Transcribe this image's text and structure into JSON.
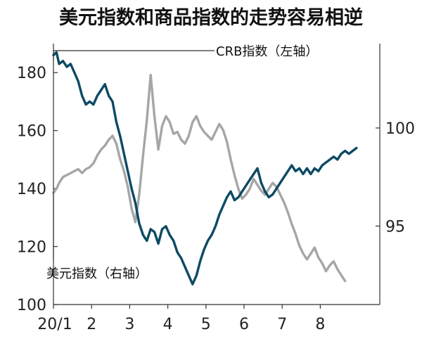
{
  "chart_data": {
    "type": "line",
    "title": "美元指数和商品指数的走势容易相逆",
    "x_tick_labels": [
      "20/1",
      "2",
      "3",
      "4",
      "5",
      "6",
      "7",
      "8"
    ],
    "left_axis": {
      "ylim": [
        100,
        190
      ],
      "ticks": [
        100,
        120,
        140,
        160,
        180
      ]
    },
    "right_axis": {
      "ylim": [
        91,
        104.3
      ],
      "ticks": [
        95,
        100
      ]
    },
    "grid": false,
    "series": [
      {
        "name": "CRB指数（左轴）",
        "axis": "left",
        "color": "#0d4a63",
        "points": [
          [
            0.0,
            186
          ],
          [
            0.08,
            187
          ],
          [
            0.15,
            183
          ],
          [
            0.25,
            184
          ],
          [
            0.35,
            182
          ],
          [
            0.45,
            183
          ],
          [
            0.55,
            180
          ],
          [
            0.65,
            177
          ],
          [
            0.75,
            172
          ],
          [
            0.85,
            169
          ],
          [
            0.95,
            170
          ],
          [
            1.05,
            169
          ],
          [
            1.15,
            172
          ],
          [
            1.25,
            174
          ],
          [
            1.35,
            176
          ],
          [
            1.45,
            172
          ],
          [
            1.55,
            170
          ],
          [
            1.65,
            163
          ],
          [
            1.75,
            158
          ],
          [
            1.85,
            152
          ],
          [
            1.95,
            146
          ],
          [
            2.05,
            140
          ],
          [
            2.15,
            135
          ],
          [
            2.25,
            128
          ],
          [
            2.35,
            124
          ],
          [
            2.45,
            122
          ],
          [
            2.55,
            126
          ],
          [
            2.65,
            125
          ],
          [
            2.75,
            121
          ],
          [
            2.85,
            126
          ],
          [
            2.95,
            127
          ],
          [
            3.05,
            124
          ],
          [
            3.15,
            122
          ],
          [
            3.25,
            118
          ],
          [
            3.35,
            116
          ],
          [
            3.45,
            113
          ],
          [
            3.55,
            110
          ],
          [
            3.65,
            107
          ],
          [
            3.75,
            110
          ],
          [
            3.85,
            115
          ],
          [
            3.95,
            119
          ],
          [
            4.05,
            122
          ],
          [
            4.15,
            124
          ],
          [
            4.25,
            127
          ],
          [
            4.35,
            131
          ],
          [
            4.45,
            134
          ],
          [
            4.55,
            137
          ],
          [
            4.65,
            139
          ],
          [
            4.75,
            136
          ],
          [
            4.85,
            137
          ],
          [
            4.95,
            139
          ],
          [
            5.05,
            141
          ],
          [
            5.15,
            143
          ],
          [
            5.25,
            145
          ],
          [
            5.35,
            147
          ],
          [
            5.45,
            142
          ],
          [
            5.55,
            139
          ],
          [
            5.65,
            137
          ],
          [
            5.75,
            138
          ],
          [
            5.85,
            140
          ],
          [
            5.95,
            142
          ],
          [
            6.05,
            144
          ],
          [
            6.15,
            146
          ],
          [
            6.25,
            148
          ],
          [
            6.35,
            146
          ],
          [
            6.45,
            147
          ],
          [
            6.55,
            145
          ],
          [
            6.65,
            147
          ],
          [
            6.75,
            145
          ],
          [
            6.85,
            147
          ],
          [
            6.95,
            146
          ],
          [
            7.05,
            148
          ],
          [
            7.15,
            149
          ],
          [
            7.25,
            150
          ],
          [
            7.35,
            151
          ],
          [
            7.45,
            150
          ],
          [
            7.55,
            152
          ],
          [
            7.65,
            153
          ],
          [
            7.75,
            152
          ],
          [
            7.85,
            153
          ],
          [
            7.95,
            154
          ]
        ]
      },
      {
        "name": "美元指数（右轴）",
        "axis": "right",
        "color": "#a6a6a6",
        "points": [
          [
            0.0,
            96.7
          ],
          [
            0.08,
            96.9
          ],
          [
            0.15,
            97.2
          ],
          [
            0.25,
            97.5
          ],
          [
            0.35,
            97.6
          ],
          [
            0.45,
            97.7
          ],
          [
            0.55,
            97.8
          ],
          [
            0.65,
            97.9
          ],
          [
            0.75,
            97.7
          ],
          [
            0.85,
            97.9
          ],
          [
            0.95,
            98.0
          ],
          [
            1.05,
            98.2
          ],
          [
            1.15,
            98.6
          ],
          [
            1.25,
            98.9
          ],
          [
            1.35,
            99.1
          ],
          [
            1.45,
            99.4
          ],
          [
            1.55,
            99.6
          ],
          [
            1.65,
            99.2
          ],
          [
            1.75,
            98.4
          ],
          [
            1.85,
            97.8
          ],
          [
            1.95,
            97.0
          ],
          [
            2.05,
            95.9
          ],
          [
            2.15,
            95.2
          ],
          [
            2.25,
            96.6
          ],
          [
            2.35,
            98.6
          ],
          [
            2.45,
            100.4
          ],
          [
            2.55,
            102.7
          ],
          [
            2.65,
            100.6
          ],
          [
            2.75,
            98.9
          ],
          [
            2.85,
            100.1
          ],
          [
            2.95,
            100.6
          ],
          [
            3.05,
            100.3
          ],
          [
            3.15,
            99.7
          ],
          [
            3.25,
            99.8
          ],
          [
            3.35,
            99.4
          ],
          [
            3.45,
            99.2
          ],
          [
            3.55,
            99.6
          ],
          [
            3.65,
            100.3
          ],
          [
            3.75,
            100.6
          ],
          [
            3.85,
            100.1
          ],
          [
            3.95,
            99.8
          ],
          [
            4.05,
            99.6
          ],
          [
            4.15,
            99.4
          ],
          [
            4.25,
            99.8
          ],
          [
            4.35,
            100.2
          ],
          [
            4.45,
            99.9
          ],
          [
            4.55,
            99.3
          ],
          [
            4.65,
            98.4
          ],
          [
            4.75,
            97.6
          ],
          [
            4.85,
            96.9
          ],
          [
            4.95,
            96.4
          ],
          [
            5.05,
            96.6
          ],
          [
            5.15,
            96.9
          ],
          [
            5.25,
            97.4
          ],
          [
            5.35,
            97.1
          ],
          [
            5.45,
            96.8
          ],
          [
            5.55,
            96.6
          ],
          [
            5.65,
            96.9
          ],
          [
            5.75,
            97.2
          ],
          [
            5.85,
            97.0
          ],
          [
            5.95,
            96.6
          ],
          [
            6.05,
            96.2
          ],
          [
            6.15,
            95.7
          ],
          [
            6.25,
            95.1
          ],
          [
            6.35,
            94.6
          ],
          [
            6.45,
            94.0
          ],
          [
            6.55,
            93.6
          ],
          [
            6.65,
            93.3
          ],
          [
            6.75,
            93.6
          ],
          [
            6.85,
            93.9
          ],
          [
            6.95,
            93.4
          ],
          [
            7.05,
            93.1
          ],
          [
            7.15,
            92.7
          ],
          [
            7.25,
            93.0
          ],
          [
            7.35,
            93.2
          ],
          [
            7.45,
            92.8
          ],
          [
            7.55,
            92.5
          ],
          [
            7.65,
            92.2
          ]
        ]
      }
    ],
    "annotations": [
      {
        "text": "CRB指数（左轴）",
        "series": 0
      },
      {
        "text": "美元指数（右轴）",
        "series": 1
      }
    ]
  }
}
